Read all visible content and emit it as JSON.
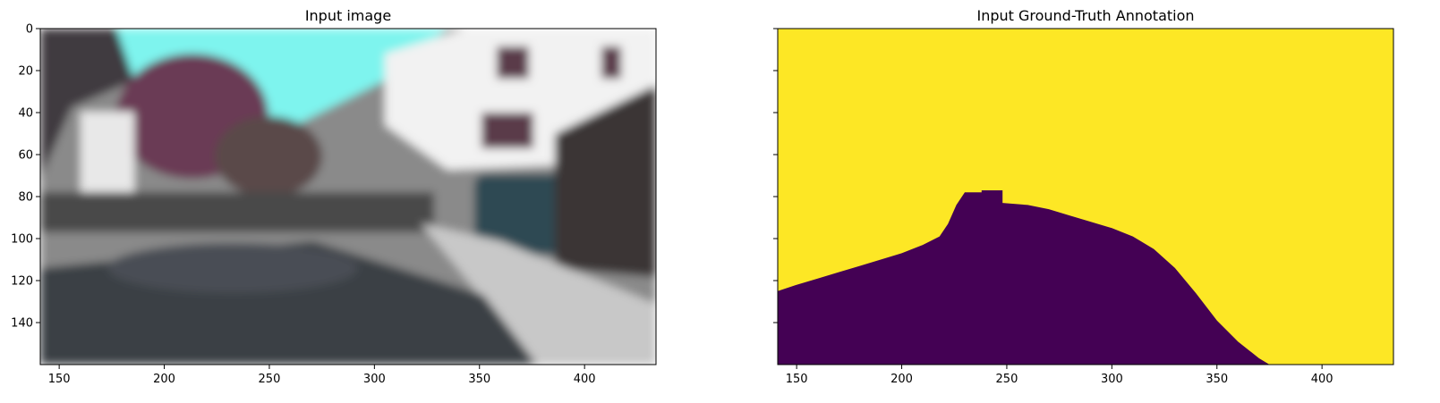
{
  "chart_data": [
    {
      "type": "image",
      "title": "Input image",
      "xticks": [
        150,
        200,
        250,
        300,
        350,
        400
      ],
      "yticks": [
        0,
        20,
        40,
        60,
        80,
        100,
        120,
        140
      ],
      "xlim": [
        141,
        434
      ],
      "ylim": [
        160,
        0
      ],
      "colors": {
        "sky": "#7ef4ee",
        "building": "#f2f2f2",
        "foliage": "#6b3a55",
        "road": "#8a8a8a",
        "shadow": "#3a3f45",
        "car": "#2f4a52"
      }
    },
    {
      "type": "heatmap",
      "title": "Input Ground-Truth Annotation",
      "xticks": [
        150,
        200,
        250,
        300,
        350,
        400
      ],
      "yticks": [
        0,
        20,
        40,
        60,
        80,
        100,
        120,
        140
      ],
      "show_ytick_labels": false,
      "xlim": [
        141,
        434
      ],
      "ylim": [
        160,
        0
      ],
      "colormap": "viridis",
      "colors": {
        "background": "#fde725",
        "road": "#440154"
      },
      "boundary": [
        [
          141,
          125
        ],
        [
          150,
          122
        ],
        [
          160,
          119
        ],
        [
          170,
          116
        ],
        [
          180,
          113
        ],
        [
          190,
          110
        ],
        [
          200,
          107
        ],
        [
          210,
          103
        ],
        [
          218,
          99
        ],
        [
          222,
          93
        ],
        [
          226,
          84
        ],
        [
          230,
          78
        ],
        [
          238,
          78
        ],
        [
          238,
          77
        ],
        [
          248,
          77
        ],
        [
          248,
          83
        ],
        [
          260,
          84
        ],
        [
          270,
          86
        ],
        [
          280,
          89
        ],
        [
          290,
          92
        ],
        [
          300,
          95
        ],
        [
          310,
          99
        ],
        [
          320,
          105
        ],
        [
          330,
          114
        ],
        [
          340,
          126
        ],
        [
          350,
          139
        ],
        [
          360,
          149
        ],
        [
          370,
          157
        ],
        [
          375,
          160
        ]
      ]
    }
  ]
}
